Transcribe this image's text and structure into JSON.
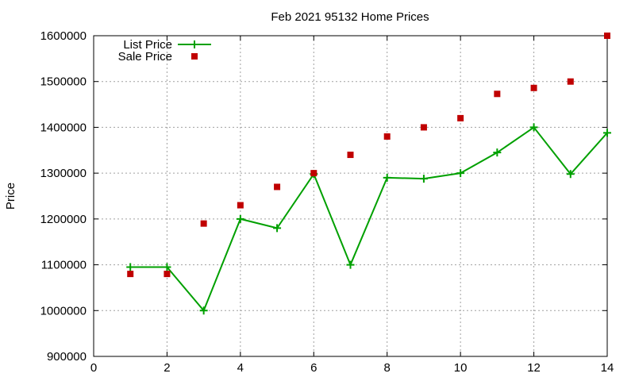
{
  "chart_data": {
    "type": "line",
    "title": "Feb 2021 95132 Home Prices",
    "xlabel": "",
    "ylabel": "Price",
    "xlim": [
      0,
      14
    ],
    "ylim": [
      900000,
      1600000
    ],
    "x_ticks": [
      0,
      2,
      4,
      6,
      8,
      10,
      12,
      14
    ],
    "y_ticks": [
      900000,
      1000000,
      1100000,
      1200000,
      1300000,
      1400000,
      1500000,
      1600000
    ],
    "grid": true,
    "legend_position": "top-left",
    "series": [
      {
        "name": "List Price",
        "style": "line-with-plus-markers",
        "color": "#00a000",
        "x": [
          1,
          2,
          3,
          4,
          5,
          6,
          7,
          8,
          9,
          10,
          11,
          12,
          13,
          14
        ],
        "values": [
          1095000,
          1095000,
          1000000,
          1200000,
          1180000,
          1298000,
          1100000,
          1290000,
          1288000,
          1300000,
          1345000,
          1400000,
          1298000,
          1388000
        ]
      },
      {
        "name": "Sale Price",
        "style": "square-markers",
        "color": "#c00000",
        "x": [
          1,
          2,
          3,
          4,
          5,
          6,
          7,
          8,
          9,
          10,
          11,
          12,
          13,
          14
        ],
        "values": [
          1080000,
          1080000,
          1190000,
          1230000,
          1270000,
          1300000,
          1340000,
          1380000,
          1400000,
          1420000,
          1473000,
          1486000,
          1500000,
          1600000
        ]
      }
    ]
  }
}
